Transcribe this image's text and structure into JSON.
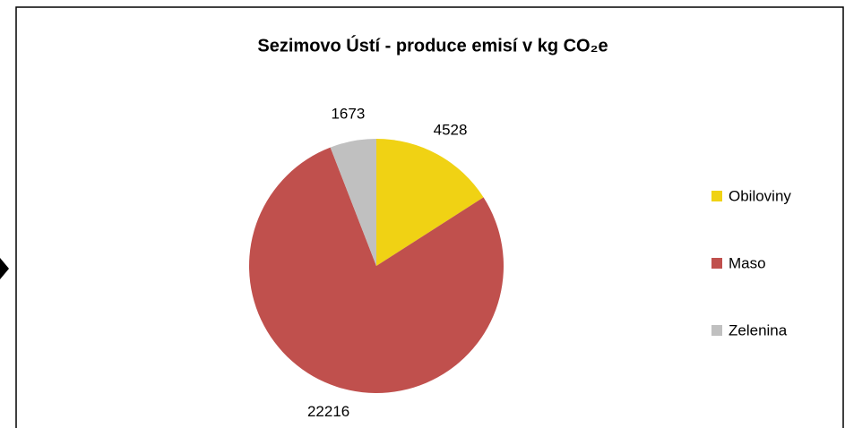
{
  "chart_data": {
    "type": "pie",
    "title": "Sezimovo Ústí - produce emisí v kg CO₂e",
    "categories": [
      "Obiloviny",
      "Maso",
      "Zelenina"
    ],
    "values": [
      4528,
      22216,
      1673
    ],
    "colors": [
      "#f0d214",
      "#c0504d",
      "#c0c0c0"
    ],
    "legend": "right"
  }
}
